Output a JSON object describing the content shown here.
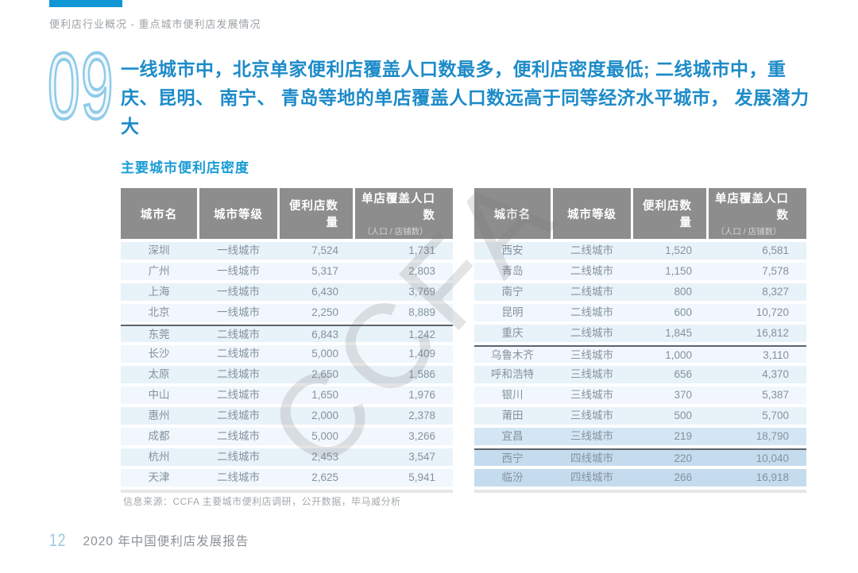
{
  "page": {
    "breadcrumb": "便利店行业概况 - 重点城市便利店发展情况",
    "slide_number": "09",
    "headline": "一线城市中，北京单家便利店覆盖人口数最多，便利店密度最低; 二线城市中，重庆、昆明、 南宁、 青岛等地的单店覆盖人口数远高于同等经济水平城市， 发展潜力大",
    "section_title": "主要城市便利店密度",
    "watermark": "CCFA",
    "source_note": "信息来源：CCFA 主要城市便利店调研，公开数据，毕马威分析",
    "footer": {
      "page_number": "12",
      "report_title": "2020 年中国便利店发展报告"
    }
  },
  "colors": {
    "accent_blue": "#1d8bc8",
    "bar_blue": "#1095d5",
    "header_gray": "#8d8d8d",
    "row_light": "#e8f2f9",
    "row_lighter": "#f1f7fc",
    "row_mid": "#d4e6f4",
    "row_dark": "#c5dcef",
    "cell_text": "#84929e"
  },
  "tables": {
    "columns": [
      "城市名",
      "城市等级",
      "便利店数量",
      "单店覆盖人口数"
    ],
    "column_sub": "（人口 / 店铺数）",
    "left": {
      "rows": [
        {
          "city": "深圳",
          "tier": "一线城市",
          "stores": "7,524",
          "coverage": "1,731"
        },
        {
          "city": "广州",
          "tier": "一线城市",
          "stores": "5,317",
          "coverage": "2,803"
        },
        {
          "city": "上海",
          "tier": "一线城市",
          "stores": "6,430",
          "coverage": "3,769"
        },
        {
          "city": "北京",
          "tier": "一线城市",
          "stores": "2,250",
          "coverage": "8,889"
        },
        {
          "city": "东莞",
          "tier": "二线城市",
          "stores": "6,843",
          "coverage": "1,242",
          "divider": true
        },
        {
          "city": "长沙",
          "tier": "二线城市",
          "stores": "5,000",
          "coverage": "1,409"
        },
        {
          "city": "太原",
          "tier": "二线城市",
          "stores": "2,650",
          "coverage": "1,586"
        },
        {
          "city": "中山",
          "tier": "二线城市",
          "stores": "1,650",
          "coverage": "1,976"
        },
        {
          "city": "惠州",
          "tier": "二线城市",
          "stores": "2,000",
          "coverage": "2,378"
        },
        {
          "city": "成都",
          "tier": "二线城市",
          "stores": "5,000",
          "coverage": "3,266"
        },
        {
          "city": "杭州",
          "tier": "二线城市",
          "stores": "2,453",
          "coverage": "3,547"
        },
        {
          "city": "天津",
          "tier": "二线城市",
          "stores": "2,625",
          "coverage": "5,941"
        }
      ]
    },
    "right": {
      "rows": [
        {
          "city": "西安",
          "tier": "二线城市",
          "stores": "1,520",
          "coverage": "6,581"
        },
        {
          "city": "青岛",
          "tier": "二线城市",
          "stores": "1,150",
          "coverage": "7,578"
        },
        {
          "city": "南宁",
          "tier": "二线城市",
          "stores": "800",
          "coverage": "8,327"
        },
        {
          "city": "昆明",
          "tier": "二线城市",
          "stores": "600",
          "coverage": "10,720"
        },
        {
          "city": "重庆",
          "tier": "二线城市",
          "stores": "1,845",
          "coverage": "16,812"
        },
        {
          "city": "乌鲁木齐",
          "tier": "三线城市",
          "stores": "1,000",
          "coverage": "3,110",
          "divider": true
        },
        {
          "city": "呼和浩特",
          "tier": "三线城市",
          "stores": "656",
          "coverage": "4,370"
        },
        {
          "city": "银川",
          "tier": "三线城市",
          "stores": "370",
          "coverage": "5,387"
        },
        {
          "city": "莆田",
          "tier": "三线城市",
          "stores": "500",
          "coverage": "5,700"
        },
        {
          "city": "宜昌",
          "tier": "三线城市",
          "stores": "219",
          "coverage": "18,790",
          "shade": "mid"
        },
        {
          "city": "西宁",
          "tier": "四线城市",
          "stores": "220",
          "coverage": "10,040",
          "divider": true,
          "shade": "dark"
        },
        {
          "city": "临汾",
          "tier": "四线城市",
          "stores": "266",
          "coverage": "16,918",
          "shade": "dark"
        }
      ]
    }
  }
}
